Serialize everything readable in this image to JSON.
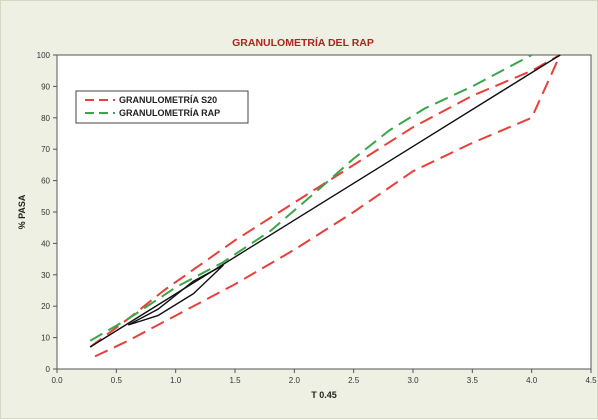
{
  "colors": {
    "title": "#b0241f",
    "s20_upper": "#e8403a",
    "s20_lower": "#e8403a",
    "rap": "#3aa64a",
    "max_density": "#111111",
    "plot_bg": "#ffffff",
    "frame_bg": "#eef0e3"
  },
  "chart_data": {
    "type": "line",
    "title": "GRANULOMETRÍA DEL RAP",
    "xlabel": "T 0.45",
    "ylabel": "% PASA",
    "xlim": [
      0,
      4.5
    ],
    "ylim": [
      0,
      100
    ],
    "x_ticks": [
      "0.0",
      "0.5",
      "1.0",
      "1.5",
      "2.0",
      "2.5",
      "3.0",
      "3.5",
      "4.0",
      "4.5"
    ],
    "y_ticks": [
      "0",
      "10",
      "20",
      "30",
      "40",
      "50",
      "60",
      "70",
      "80",
      "90",
      "100"
    ],
    "grid": false,
    "legend_position": "top-left",
    "legend": [
      {
        "label": "GRANULOMETRÍA S20",
        "series": "s20_upper"
      },
      {
        "label": "GRANULOMETRÍA RAP",
        "series": "rap"
      }
    ],
    "series": [
      {
        "id": "s20_upper",
        "style": "dashed",
        "points": [
          [
            0.28,
            7
          ],
          [
            0.6,
            16
          ],
          [
            0.9,
            25
          ],
          [
            1.2,
            33
          ],
          [
            1.5,
            41
          ],
          [
            2.0,
            53
          ],
          [
            2.5,
            65
          ],
          [
            3.0,
            77
          ],
          [
            3.5,
            87
          ],
          [
            4.0,
            95
          ],
          [
            4.24,
            100
          ]
        ]
      },
      {
        "id": "s20_lower",
        "style": "dashed",
        "points": [
          [
            0.32,
            4
          ],
          [
            0.6,
            9
          ],
          [
            1.0,
            17
          ],
          [
            1.5,
            27
          ],
          [
            2.0,
            38
          ],
          [
            2.5,
            50
          ],
          [
            3.0,
            63
          ],
          [
            3.5,
            72
          ],
          [
            4.0,
            80
          ],
          [
            4.24,
            100
          ]
        ]
      },
      {
        "id": "rap",
        "style": "dashed",
        "points": [
          [
            0.28,
            9
          ],
          [
            0.6,
            16
          ],
          [
            1.0,
            26
          ],
          [
            1.4,
            34
          ],
          [
            1.8,
            44
          ],
          [
            2.2,
            57
          ],
          [
            2.5,
            67
          ],
          [
            2.8,
            76
          ],
          [
            3.1,
            83
          ],
          [
            3.5,
            90
          ],
          [
            4.0,
            100
          ]
        ]
      },
      {
        "id": "max_density",
        "style": "solid",
        "points": [
          [
            0.28,
            7
          ],
          [
            4.24,
            100
          ]
        ]
      },
      {
        "id": "max_density_fine",
        "style": "solid",
        "points": [
          [
            0.6,
            14
          ],
          [
            0.85,
            19
          ],
          [
            1.15,
            28
          ],
          [
            1.4,
            33
          ],
          [
            1.15,
            24
          ],
          [
            0.85,
            17
          ],
          [
            0.6,
            14
          ]
        ]
      }
    ]
  }
}
